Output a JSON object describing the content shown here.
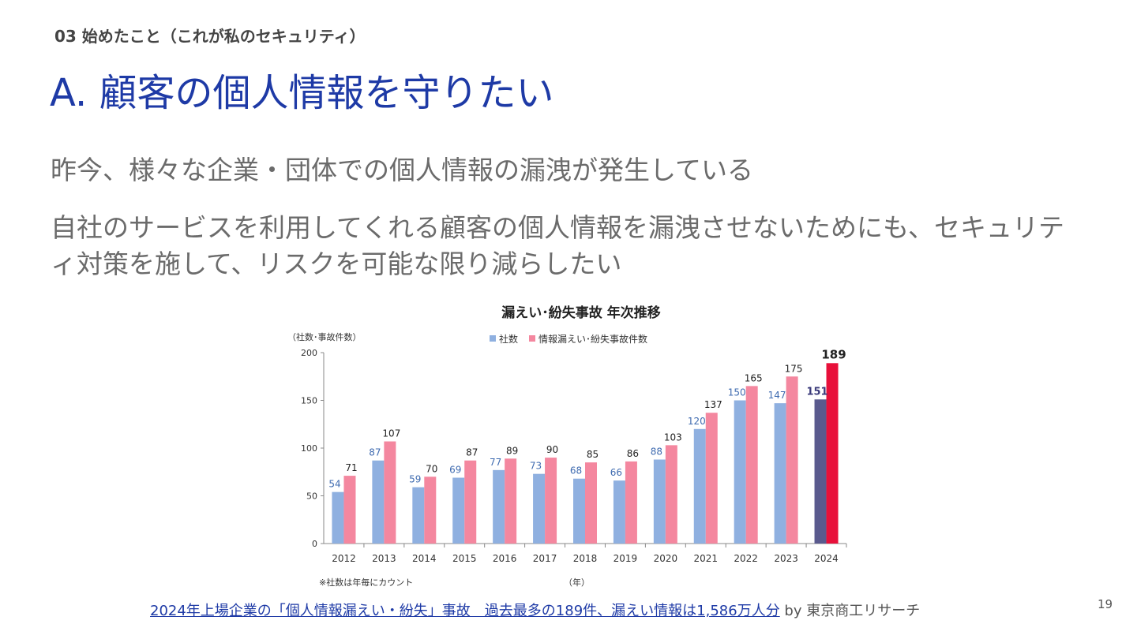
{
  "slide": {
    "section_label": "03 始めたこと（これが私のセキュリティ）",
    "title": "A. 顧客の個人情報を守りたい",
    "paragraphs": [
      "昨今、様々な企業・団体での個人情報の漏洩が発生している",
      "自社のサービスを利用してくれる顧客の個人情報を漏洩させないためにも、セキュリティ対策を施して、リスクを可能な限り減らしたい"
    ],
    "footer": {
      "link_text": "2024年上場企業の「個人情報漏えい・紛失」事故　過去最多の189件、漏えい情報は1,586万人分",
      "suffix": " by 東京商工リサーチ"
    },
    "page_number": "19"
  },
  "chart_data": {
    "type": "bar",
    "title": "漏えい･紛失事故 年次推移",
    "ylabel": "（社数･事故件数）",
    "xlabel": "（年）",
    "note": "※社数は年毎にカウント",
    "ylim": [
      0,
      200
    ],
    "yticks": [
      0,
      50,
      100,
      150,
      200
    ],
    "categories": [
      "2012",
      "2013",
      "2014",
      "2015",
      "2016",
      "2017",
      "2018",
      "2019",
      "2020",
      "2021",
      "2022",
      "2023",
      "2024"
    ],
    "series": [
      {
        "name": "社数",
        "color": "#8fb0e0",
        "label_color": "#3f6bb0",
        "highlight_color": "#5a5a8e",
        "values": [
          54,
          87,
          59,
          69,
          77,
          73,
          68,
          66,
          88,
          120,
          150,
          147,
          151
        ]
      },
      {
        "name": "情報漏えい･紛失事故件数",
        "color": "#f4879f",
        "label_color": "#222222",
        "highlight_color": "#e8103a",
        "values": [
          71,
          107,
          70,
          87,
          89,
          90,
          85,
          86,
          103,
          137,
          165,
          175,
          189
        ]
      }
    ]
  }
}
